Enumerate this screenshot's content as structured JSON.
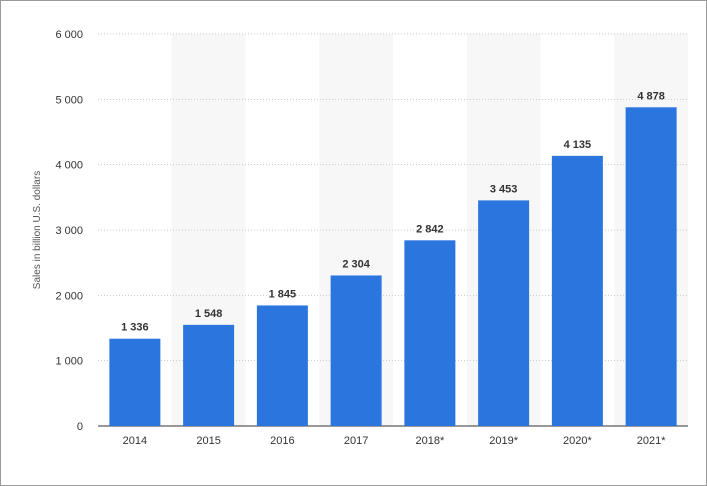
{
  "chart_data": {
    "type": "bar",
    "title": "",
    "xlabel": "",
    "ylabel": "Sales in billion U.S. dollars",
    "categories": [
      "2014",
      "2015",
      "2016",
      "2017",
      "2018*",
      "2019*",
      "2020*",
      "2021*"
    ],
    "values": [
      1336,
      1548,
      1845,
      2304,
      2842,
      3453,
      4135,
      4878
    ],
    "value_labels": [
      "1 336",
      "1 548",
      "1 845",
      "2 304",
      "2 842",
      "3 453",
      "4 135",
      "4 878"
    ],
    "ylim": [
      0,
      6000
    ],
    "yticks": [
      0,
      1000,
      2000,
      3000,
      4000,
      5000,
      6000
    ],
    "ytick_labels": [
      "0",
      "1 000",
      "2 000",
      "3 000",
      "4 000",
      "5 000",
      "6 000"
    ],
    "grid": true,
    "bar_color": "#2a75de",
    "band_color": "#f7f7f7",
    "grid_color": "#c8c8c8"
  }
}
